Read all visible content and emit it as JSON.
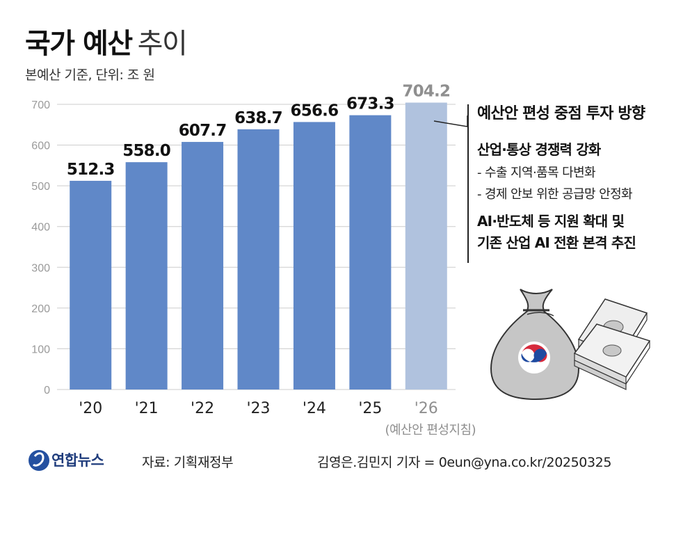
{
  "header": {
    "title_bold": "국가 예산",
    "title_light": "추이",
    "subtitle": "본예산 기준, 단위: 조 원"
  },
  "chart_data": {
    "type": "bar",
    "categories": [
      "'20",
      "'21",
      "'22",
      "'23",
      "'24",
      "'25",
      "'26"
    ],
    "values": [
      512.3,
      558.0,
      607.7,
      638.7,
      656.6,
      673.3,
      704.2
    ],
    "value_labels": [
      "512.3",
      "558.0",
      "607.7",
      "638.7",
      "656.6",
      "673.3",
      "704.2"
    ],
    "category_notes": [
      "",
      "",
      "",
      "",
      "",
      "",
      "(예산안 편성지침)"
    ],
    "highlight_last": true,
    "ylim": [
      0,
      700
    ],
    "yticks": [
      0,
      100,
      200,
      300,
      400,
      500,
      600,
      700
    ],
    "grid": true,
    "colors": {
      "bar": "#6088c8",
      "bar_last": "#b0c2de",
      "label_last": "#8f8f8f",
      "grid": "#cccccc",
      "tick": "#9a9a9a"
    }
  },
  "annotation": {
    "title": "예산안 편성 중점 투자 방향",
    "heading1": "산업·통상 경쟁력 강화",
    "items": [
      "- 수출 지역·품목 다변화",
      "- 경제 안보 위한 공급망 안정화"
    ],
    "heading2_lines": [
      "AI·반도체 등 지원 확대 및",
      "기존 산업 AI 전환 본격 추진"
    ]
  },
  "illustration": {
    "icon": "money-bag-icon",
    "icon2": "cash-stack-icon",
    "bag_color": "#c9c9c9",
    "emblem": "taegeuk-icon"
  },
  "footer": {
    "logo": "연합뉴스",
    "source": "자료: 기획재정부",
    "credit": "김영은.김민지 기자 = 0eun@yna.co.kr/20250325"
  }
}
